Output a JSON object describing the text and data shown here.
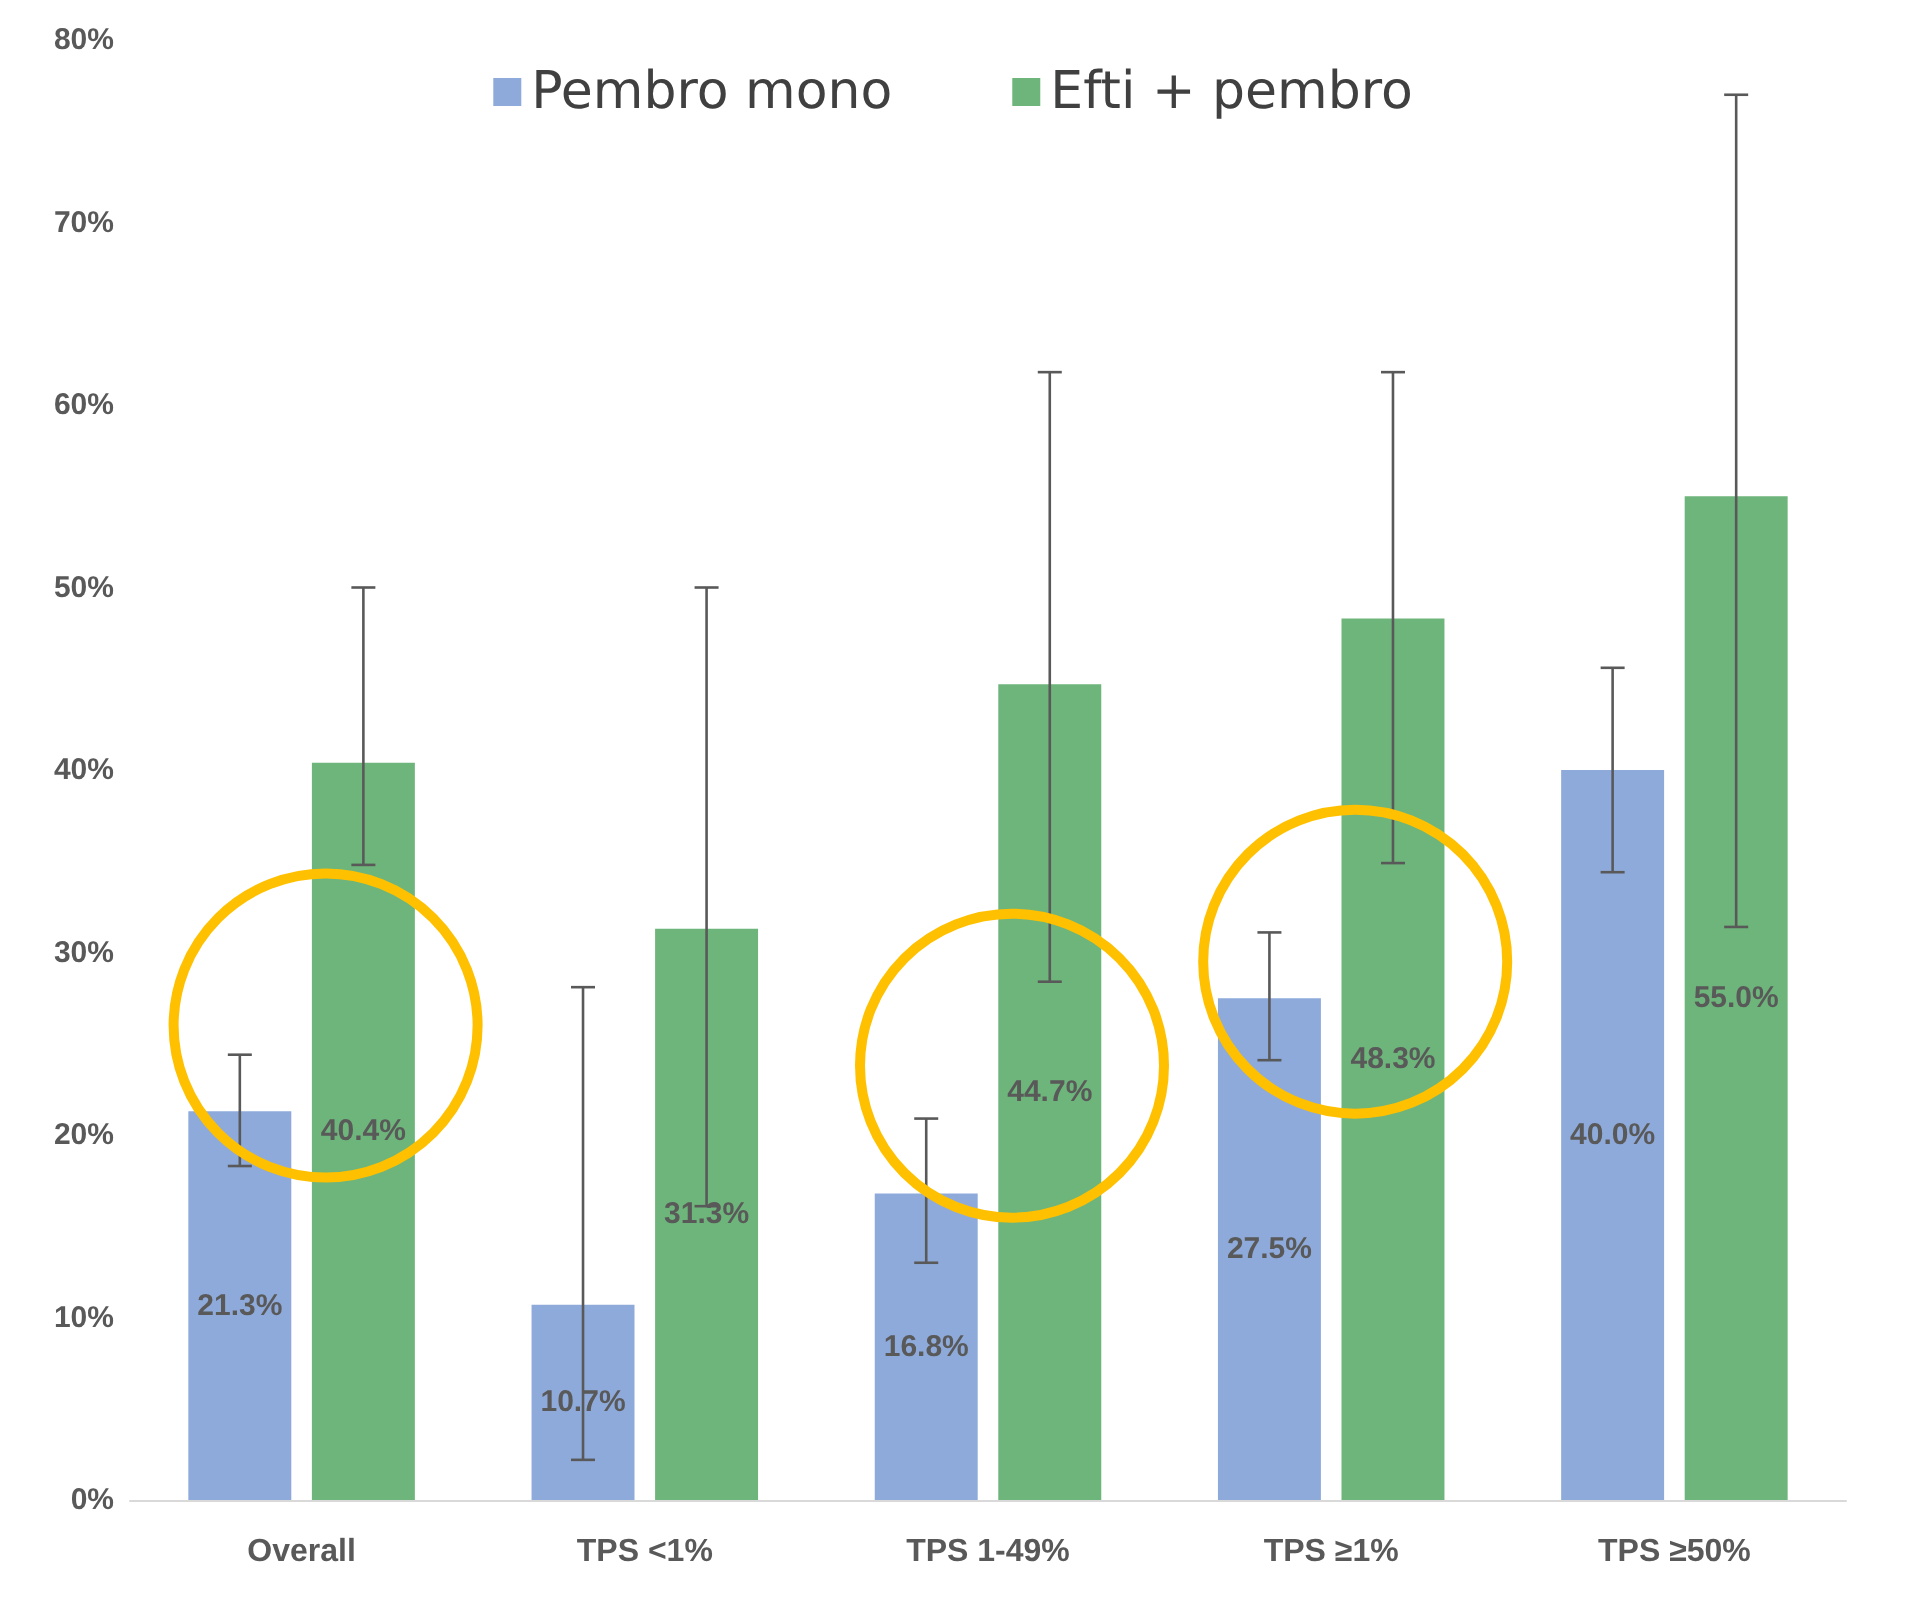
{
  "chart_data": {
    "type": "bar",
    "categories": [
      "Overall",
      "TPS <1%",
      "TPS 1-49%",
      "TPS ≥1%",
      "TPS ≥50%"
    ],
    "ylim": [
      0,
      80
    ],
    "yticks": [
      {
        "value": 0,
        "label": "0%"
      },
      {
        "value": 10,
        "label": "10%"
      },
      {
        "value": 20,
        "label": "20%"
      },
      {
        "value": 30,
        "label": "30%"
      },
      {
        "value": 40,
        "label": "40%"
      },
      {
        "value": 50,
        "label": "50%"
      },
      {
        "value": 60,
        "label": "60%"
      },
      {
        "value": 70,
        "label": "70%"
      },
      {
        "value": 80,
        "label": "80%"
      }
    ],
    "grid": false,
    "legend": "top",
    "series": [
      {
        "name": "Pembro mono",
        "color": "#8eaadb",
        "values": [
          21.3,
          10.7,
          16.8,
          27.5,
          40.0
        ],
        "value_labels": [
          "21.3%",
          "10.7%",
          "16.8%",
          "27.5%",
          "40.0%"
        ],
        "errors": [
          [
            18.3,
            24.4
          ],
          [
            2.2,
            28.1
          ],
          [
            13.0,
            20.9
          ],
          [
            24.1,
            31.1
          ],
          [
            34.4,
            45.6
          ]
        ]
      },
      {
        "name": "Efti + pembro",
        "color": "#6db57a",
        "values": [
          40.4,
          31.3,
          44.7,
          48.3,
          55.0
        ],
        "value_labels": [
          "40.4%",
          "31.3%",
          "44.7%",
          "48.3%",
          "55.0%"
        ],
        "errors": [
          [
            34.8,
            50.0
          ],
          [
            16.1,
            50.0
          ],
          [
            28.4,
            61.8
          ],
          [
            34.9,
            61.8
          ],
          [
            31.4,
            77.0
          ]
        ]
      }
    ]
  }
}
